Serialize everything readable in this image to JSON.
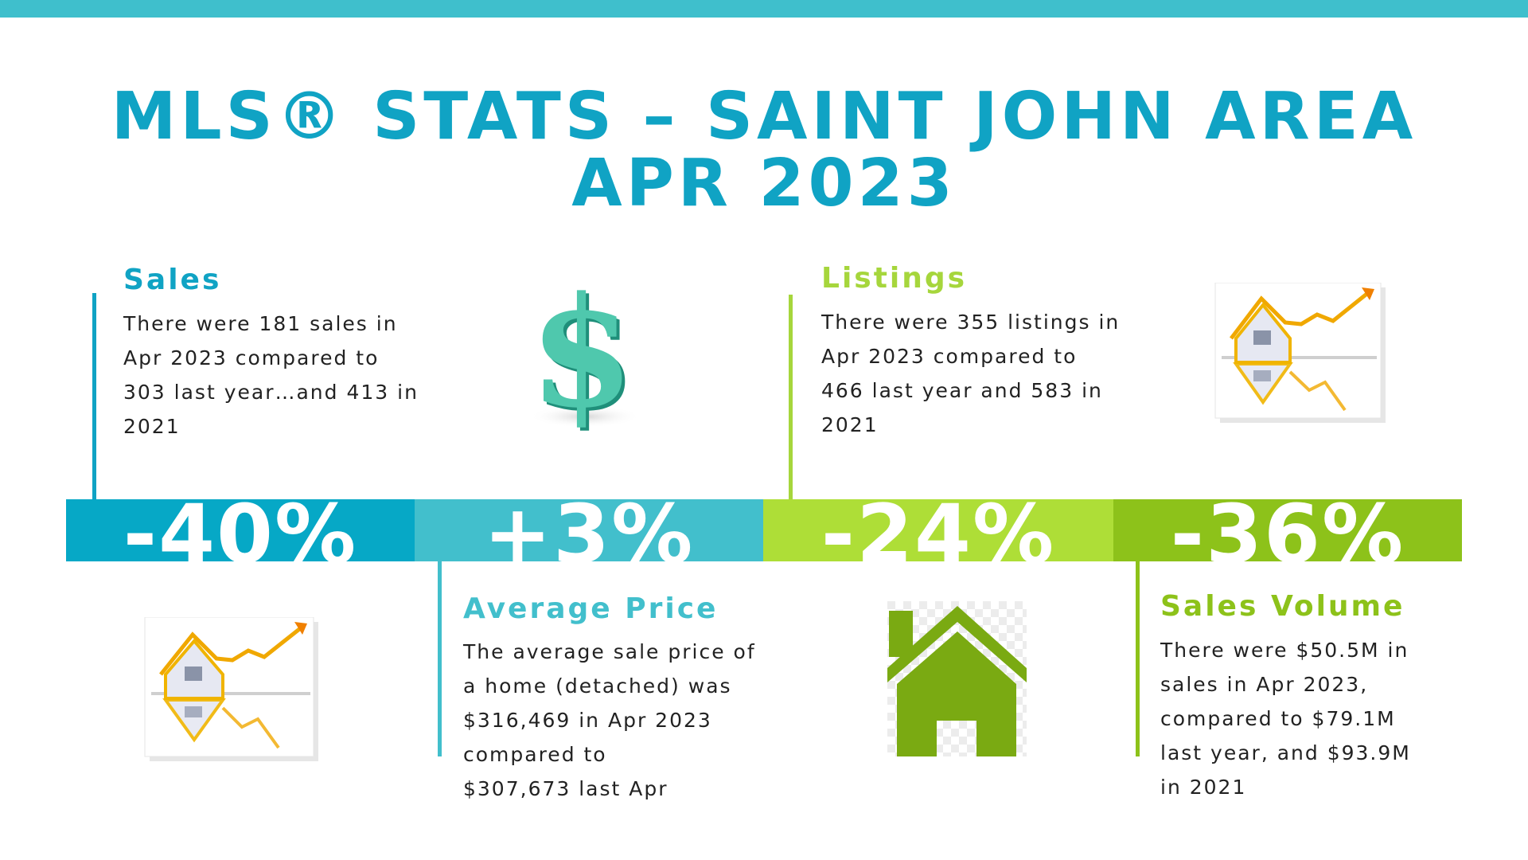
{
  "header": {
    "title_line1": "MLS® STATS – SAINT JOHN AREA",
    "title_line2": "APR 2023"
  },
  "cards": {
    "sales": {
      "heading": "Sales",
      "lines": [
        "There were 181 sales in",
        "Apr 2023 compared to",
        "303 last year…and 413 in",
        "2021"
      ]
    },
    "listings": {
      "heading": "Listings",
      "lines": [
        "There were 355 listings in",
        "Apr 2023 compared to",
        "466 last year and 583 in",
        "2021"
      ]
    },
    "average_price": {
      "heading": "Average Price",
      "lines": [
        "The average sale price of",
        "a home (detached) was",
        "$316,469 in Apr 2023",
        "compared to",
        "$307,673 last Apr"
      ]
    },
    "sales_volume": {
      "heading": "Sales Volume",
      "lines": [
        "There were $50.5M in",
        "sales in Apr 2023,",
        "compared to $79.1M",
        "last year, and $93.9M",
        "in 2021"
      ]
    }
  },
  "bands": [
    {
      "value": "-40%",
      "color": "#06a8c6"
    },
    {
      "value": "+3%",
      "color": "#42bfcc"
    },
    {
      "value": "-24%",
      "color": "#aede37"
    },
    {
      "value": "-36%",
      "color": "#8dc21a"
    }
  ],
  "colors": {
    "title": "#10a3c4",
    "sales_heading": "#10a3c4",
    "listings_heading": "#a6d63c",
    "average_price_heading": "#42bfcc",
    "sales_volume_heading": "#8dc21a"
  },
  "icons": {
    "dollar": "dollar-sign-icon",
    "house_chart": "house-chart-icon",
    "house": "house-icon"
  }
}
